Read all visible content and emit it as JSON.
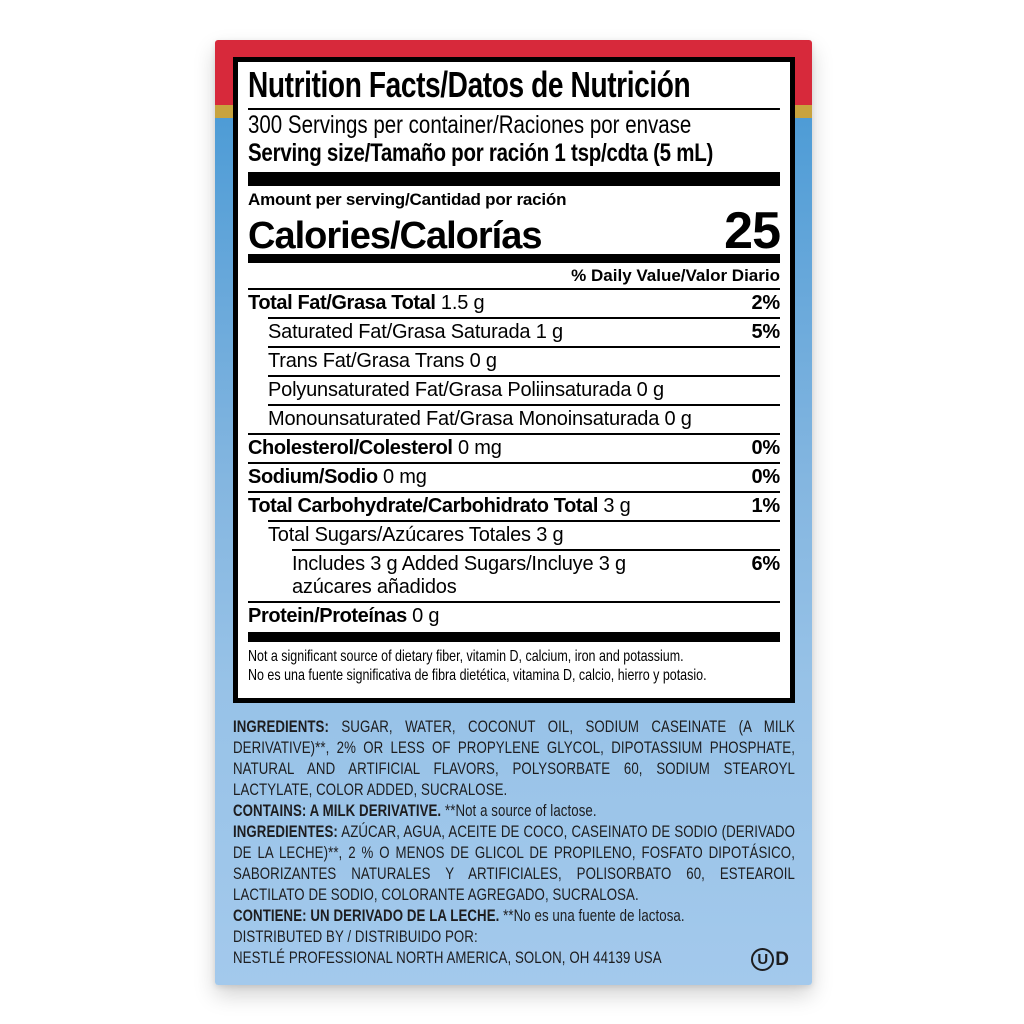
{
  "label": {
    "title": "Nutrition Facts/Datos de Nutrición",
    "servings_per_container": "300 Servings per container/Raciones por envase",
    "serving_size": "Serving size/Tamaño por ración 1 tsp/cdta (5 mL)",
    "amount_per_serving": "Amount per serving/Cantidad por ración",
    "calories_label": "Calories/Calorías",
    "calories_value": "25",
    "daily_value_header": "% Daily Value/Valor Diario",
    "rows": [
      {
        "name": "Total Fat/Grasa Total",
        "value": "1.5 g",
        "dv": "2%",
        "bold": true,
        "indent": 0
      },
      {
        "name": "Saturated Fat/Grasa Saturada",
        "value": "1 g",
        "dv": "5%",
        "bold": false,
        "indent": 1
      },
      {
        "name": "Trans Fat/Grasa Trans",
        "value": "0 g",
        "dv": "",
        "bold": false,
        "indent": 1
      },
      {
        "name": "Polyunsaturated Fat/Grasa Poliinsaturada",
        "value": "0 g",
        "dv": "",
        "bold": false,
        "indent": 1
      },
      {
        "name": "Monounsaturated Fat/Grasa Monoinsaturada",
        "value": "0 g",
        "dv": "",
        "bold": false,
        "indent": 1
      },
      {
        "name": "Cholesterol/Colesterol",
        "value": "0 mg",
        "dv": "0%",
        "bold": true,
        "indent": 0
      },
      {
        "name": "Sodium/Sodio",
        "value": "0 mg",
        "dv": "0%",
        "bold": true,
        "indent": 0
      },
      {
        "name": "Total Carbohydrate/Carbohidrato Total",
        "value": "3 g",
        "dv": "1%",
        "bold": true,
        "indent": 0
      },
      {
        "name": "Total Sugars/Azúcares Totales",
        "value": "3 g",
        "dv": "",
        "bold": false,
        "indent": 1
      },
      {
        "name": "Includes 3 g Added Sugars/Incluye 3 g",
        "name2": "azúcares añadidos",
        "value": "",
        "dv": "6%",
        "bold": false,
        "indent": 2
      },
      {
        "name": "Protein/Proteínas",
        "value": "0 g",
        "dv": "",
        "bold": true,
        "indent": 0
      }
    ],
    "footnotes": [
      "Not a significant source of dietary fiber, vitamin D, calcium, iron and potassium.",
      "No es una fuente significativa de fibra dietética, vitamina D, calcio, hierro y potasio."
    ]
  },
  "ingredients": {
    "en_lead": "INGREDIENTS:",
    "en_body": "SUGAR, WATER, COCONUT OIL, SODIUM CASEINATE (A MILK DERIVATIVE)**, 2% OR LESS OF PROPYLENE GLYCOL, DIPOTASSIUM PHOSPHATE, NATURAL AND ARTIFICIAL FLAVORS, POLYSORBATE 60, SODIUM STEAROYL LACTYLATE, COLOR ADDED, SUCRALOSE.",
    "contains_lead": "CONTAINS: A MILK DERIVATIVE.",
    "contains_note": "**Not a source of lactose.",
    "es_lead": "INGREDIENTES:",
    "es_body": "AZÚCAR, AGUA, ACEITE DE COCO, CASEINATO DE SODIO (DERIVADO DE LA LECHE)**, 2 % O MENOS DE GLICOL DE PROPILENO, FOSFATO DIPOTÁSICO, SABORIZANTES NATURALES Y ARTIFICIALES, POLISORBATO 60, ESTEAROIL LACTILATO DE SODIO, COLORANTE AGREGADO, SUCRALOSA.",
    "contiene_lead": "CONTIENE: UN DERIVADO DE LA LECHE.",
    "contiene_note": "**No es una fuente de lactosa.",
    "distributed_by": "DISTRIBUTED BY / DISTRIBUIDO POR:",
    "distributor": "NESTLÉ PROFESSIONAL NORTH AMERICA, SOLON, OH 44139 USA",
    "kosher_u": "U",
    "kosher_d": "D"
  },
  "colors": {
    "red_band": "#d7293b",
    "gold_band": "#c8a33e",
    "blue_band_top": "#4e9cd6",
    "blue_band_bottom": "#a3c9ec",
    "label_text": "#000000",
    "ingredients_text": "#1d1d1f"
  }
}
